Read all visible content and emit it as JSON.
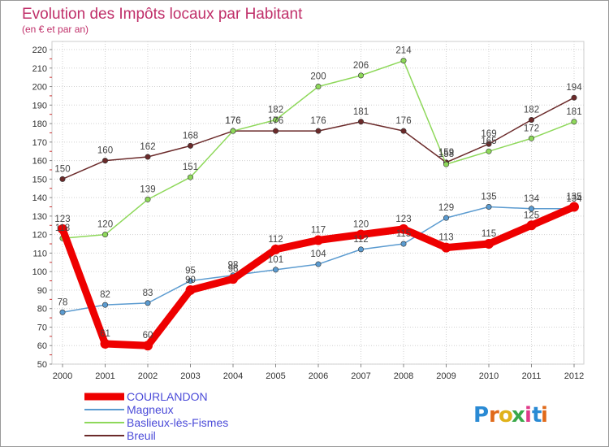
{
  "chart_data": {
    "type": "line",
    "title": "Evolution des Impôts locaux par Habitant",
    "subtitle": "(en € et par an)",
    "x": [
      "2000",
      "2001",
      "2002",
      "2003",
      "2004",
      "2005",
      "2006",
      "2007",
      "2008",
      "2009",
      "2010",
      "2011",
      "2012"
    ],
    "ylim": [
      50,
      220
    ],
    "yticks": [
      50,
      60,
      70,
      80,
      90,
      100,
      110,
      120,
      130,
      140,
      150,
      160,
      170,
      180,
      190,
      200,
      210,
      220
    ],
    "grid": true,
    "legend_position": "bottom-left",
    "series": [
      {
        "name": "COURLANDON",
        "color": "#ee0000",
        "values": [
          123,
          61,
          60,
          90,
          96,
          112,
          117,
          120,
          123,
          113,
          115,
          125,
          135
        ],
        "labels": [
          "123",
          "61",
          "60",
          "90",
          "96",
          "112",
          "117",
          "120",
          "123",
          "113",
          "115",
          "125",
          "135"
        ]
      },
      {
        "name": "Magneux",
        "color": "#5b9bd0",
        "values": [
          78,
          82,
          83,
          95,
          98,
          101,
          104,
          112,
          115,
          129,
          135,
          134,
          134
        ],
        "labels": [
          "78",
          "82",
          "83",
          "95",
          "98",
          "101",
          "104",
          "112",
          "115",
          "129",
          "135",
          "134",
          "134"
        ]
      },
      {
        "name": "Baslieux-lès-Fismes",
        "color": "#8ed85a",
        "values": [
          118,
          120,
          139,
          151,
          176,
          182,
          200,
          206,
          214,
          158,
          165,
          172,
          181
        ],
        "labels": [
          "118",
          "120",
          "139",
          "151",
          "176",
          "182",
          "200",
          "206",
          "214",
          "158",
          "165",
          "172",
          "181"
        ]
      },
      {
        "name": "Breuil",
        "color": "#6b2a2a",
        "values": [
          150,
          160,
          162,
          168,
          176,
          176,
          176,
          181,
          176,
          159,
          169,
          182,
          194
        ],
        "labels": [
          "150",
          "160",
          "162",
          "168",
          "176",
          "176",
          "176",
          "181",
          "176",
          "159",
          "169",
          "182",
          "194"
        ]
      }
    ]
  },
  "logo": {
    "text": "Proxiti",
    "letters": [
      "P",
      "r",
      "o",
      "x",
      "i",
      "t",
      "i"
    ],
    "colors": [
      "#2a8ad4",
      "#e06a1a",
      "#e0b21a",
      "#3aa84a",
      "#e03a8a",
      "#2a8ad4",
      "#e06a1a"
    ]
  }
}
